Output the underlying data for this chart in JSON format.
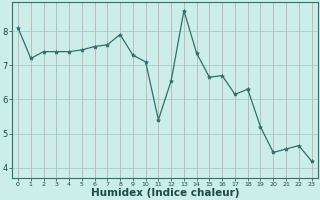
{
  "x": [
    0,
    1,
    2,
    3,
    4,
    5,
    6,
    7,
    8,
    9,
    10,
    11,
    12,
    13,
    14,
    15,
    16,
    17,
    18,
    19,
    20,
    21,
    22,
    23
  ],
  "y": [
    8.1,
    7.2,
    7.4,
    7.4,
    7.4,
    7.45,
    7.55,
    7.6,
    7.9,
    7.3,
    7.1,
    5.4,
    6.55,
    8.6,
    7.35,
    6.65,
    6.7,
    6.15,
    6.3,
    5.2,
    4.45,
    4.55,
    4.65,
    4.2
  ],
  "line_color": "#2d7070",
  "marker_size": 3,
  "bg_color": "#cceee8",
  "grid_color_major": "#aad8d0",
  "grid_color_minor": "#c0e6e0",
  "xlabel": "Humidex (Indice chaleur)",
  "xlabel_fontsize": 7.5,
  "ytick_labels": [
    "4",
    "5",
    "6",
    "7",
    "8"
  ],
  "ytick_vals": [
    4,
    5,
    6,
    7,
    8
  ],
  "xlim": [
    -0.5,
    23.5
  ],
  "ylim": [
    3.7,
    8.85
  ]
}
